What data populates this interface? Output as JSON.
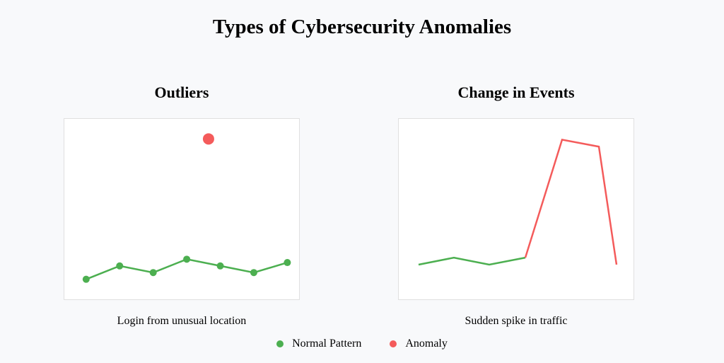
{
  "title": "Types of Cybersecurity Anomalies",
  "colors": {
    "normal": "#4caf50",
    "anomaly": "#f45b5b"
  },
  "outliers": {
    "title": "Outliers",
    "caption": "Login from unusual location",
    "normal_values": [
      3,
      5,
      4,
      6,
      5,
      4,
      5.5
    ],
    "anomaly_point": {
      "x": 4.3,
      "y": 24
    },
    "x_range": [
      0,
      7
    ],
    "y_range": [
      0,
      27
    ]
  },
  "events": {
    "title": "Change in Events",
    "caption": "Sudden spike in traffic",
    "normal_values": [
      5,
      6,
      5,
      6
    ],
    "anomaly_values": [
      6,
      23,
      22,
      5
    ],
    "y_range": [
      0,
      26
    ]
  },
  "legend": [
    {
      "label": "Normal Pattern",
      "color": "#4caf50"
    },
    {
      "label": "Anomaly",
      "color": "#f45b5b"
    }
  ]
}
